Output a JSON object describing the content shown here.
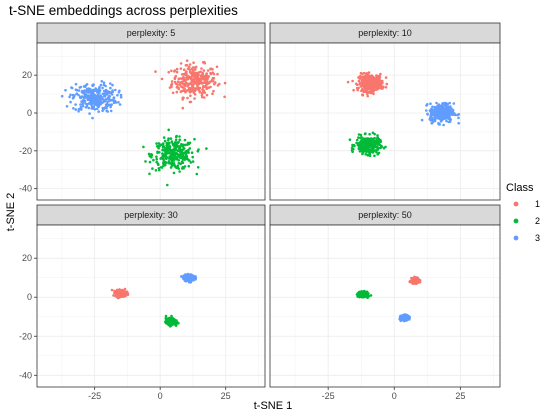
{
  "chart_data": {
    "type": "scatter",
    "title": "t-SNE embeddings across perplexities",
    "xlabel": "t-SNE 1",
    "ylabel": "t-SNE 2",
    "xlim": [
      -47,
      40
    ],
    "ylim": [
      -46,
      37
    ],
    "xticks": [
      -25,
      0,
      25
    ],
    "yticks": [
      -40,
      -20,
      0,
      20
    ],
    "grid": true,
    "legend": {
      "title": "Class",
      "position": "right",
      "entries": [
        "1",
        "2",
        "3"
      ]
    },
    "colors": {
      "1": "#F8766D",
      "2": "#00BA38",
      "3": "#619CFF"
    },
    "panels": [
      {
        "label": "perplexity: 5",
        "clusters": [
          {
            "class": "1",
            "cx": 13,
            "cy": 17,
            "sx": 8.5,
            "sy": 8.5,
            "n": 300
          },
          {
            "class": "2",
            "cx": 5,
            "cy": -22,
            "sx": 8,
            "sy": 8,
            "n": 300
          },
          {
            "class": "3",
            "cx": -25,
            "cy": 8,
            "sx": 8.5,
            "sy": 7.5,
            "n": 300
          }
        ]
      },
      {
        "label": "perplexity: 10",
        "clusters": [
          {
            "class": "1",
            "cx": -9,
            "cy": 16,
            "sx": 4.5,
            "sy": 4.5,
            "n": 300
          },
          {
            "class": "2",
            "cx": -10,
            "cy": -17,
            "sx": 4.5,
            "sy": 4.5,
            "n": 300
          },
          {
            "class": "3",
            "cx": 18,
            "cy": 0,
            "sx": 4.5,
            "sy": 5,
            "n": 300
          }
        ]
      },
      {
        "label": "perplexity: 30",
        "clusters": [
          {
            "class": "1",
            "cx": -15,
            "cy": 2,
            "sx": 2,
            "sy": 1.6,
            "n": 300
          },
          {
            "class": "2",
            "cx": 4,
            "cy": -12.5,
            "sx": 1.8,
            "sy": 1.6,
            "n": 300
          },
          {
            "class": "3",
            "cx": 11,
            "cy": 10,
            "sx": 2,
            "sy": 1.5,
            "n": 300
          }
        ]
      },
      {
        "label": "perplexity: 50",
        "clusters": [
          {
            "class": "1",
            "cx": 8,
            "cy": 8.5,
            "sx": 1.5,
            "sy": 1.2,
            "n": 300
          },
          {
            "class": "2",
            "cx": -12,
            "cy": 1.5,
            "sx": 1.5,
            "sy": 1.2,
            "n": 300
          },
          {
            "class": "3",
            "cx": 4,
            "cy": -10.5,
            "sx": 1.4,
            "sy": 1.2,
            "n": 300
          }
        ]
      }
    ]
  }
}
